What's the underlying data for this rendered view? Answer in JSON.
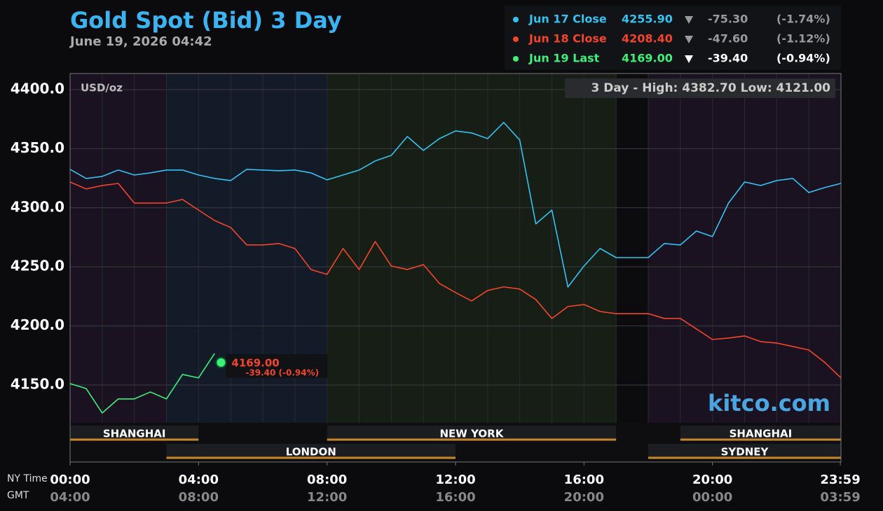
{
  "chart_data": {
    "type": "line",
    "title": "Gold Spot (Bid) 3 Day",
    "subtitle": "June 19, 2026 04:42",
    "ylabel": "USD/oz",
    "annotation": "3 Day - High: 4382.70  Low: 4121.00",
    "watermark": "kitco.com",
    "xlabel": "NY Time",
    "x2label": "GMT",
    "xlim": [
      0,
      24
    ],
    "xticks": [
      {
        "value": 0,
        "label": "00:00"
      },
      {
        "value": 4,
        "label": "04:00"
      },
      {
        "value": 8,
        "label": "08:00"
      },
      {
        "value": 12,
        "label": "12:00"
      },
      {
        "value": 16,
        "label": "16:00"
      },
      {
        "value": 20,
        "label": "20:00"
      },
      {
        "value": 23.98,
        "label": "23:59"
      }
    ],
    "x2ticks": [
      "04:00",
      "08:00",
      "12:00",
      "16:00",
      "20:00",
      "00:00",
      "03:59"
    ],
    "ylim": [
      4118,
      4413.6
    ],
    "yticks": [
      {
        "value": 4150,
        "label": "4150.0"
      },
      {
        "value": 4200,
        "label": "4200.0"
      },
      {
        "value": 4250,
        "label": "4250.0"
      },
      {
        "value": 4300,
        "label": "4300.0"
      },
      {
        "value": 4350,
        "label": "4350.0"
      },
      {
        "value": 4400,
        "label": "4400.0"
      }
    ],
    "grid": true,
    "x": [
      0,
      0.5,
      1,
      1.5,
      2,
      2.5,
      3,
      3.5,
      4,
      4.5,
      5,
      5.5,
      6,
      6.5,
      7,
      7.5,
      8,
      8.5,
      9,
      9.5,
      10,
      10.5,
      11,
      11.5,
      12,
      12.5,
      13,
      13.5,
      14,
      14.5,
      15,
      15.5,
      16,
      16.5,
      17,
      17.5,
      18,
      18.5,
      19,
      19.5,
      20,
      20.5,
      21,
      21.5,
      22,
      22.5,
      23,
      23.5,
      24
    ],
    "series": [
      {
        "name": "Jun 17 Close",
        "color": "#33c3f2",
        "values": [
          4332.5,
          4324.8,
          4326.5,
          4331.9,
          4327.7,
          4329.5,
          4331.9,
          4331.9,
          4327.7,
          4324.8,
          4323,
          4332.5,
          4331.9,
          4331.3,
          4331.9,
          4329.5,
          4323.6,
          4327.7,
          4331.9,
          4339.6,
          4344.3,
          4360.3,
          4348.5,
          4358.5,
          4365,
          4363.3,
          4358.5,
          4372.2,
          4357.3,
          4286.3,
          4298,
          4232.9,
          4250.7,
          4265.5,
          4257.8,
          4257.8,
          4257.8,
          4269.7,
          4268.5,
          4280.3,
          4275.6,
          4304,
          4321.8,
          4318.8,
          4323,
          4324.8,
          4312.9,
          4317.1,
          4320.6
        ]
      },
      {
        "name": "Jun 18 Close",
        "color": "#f2452c",
        "values": [
          4321.8,
          4315.9,
          4318.8,
          4320.6,
          4304,
          4304,
          4304,
          4307,
          4298,
          4289.2,
          4283.3,
          4268.5,
          4268.5,
          4269.7,
          4265.5,
          4247.7,
          4243.6,
          4265.5,
          4247.7,
          4271.4,
          4250.7,
          4247.7,
          4251.9,
          4235.9,
          4228.2,
          4221.1,
          4230,
          4233,
          4231.2,
          4222.3,
          4206.3,
          4216.4,
          4218.1,
          4212.2,
          4210.4,
          4210.4,
          4210.4,
          4206.3,
          4206.3,
          4197.4,
          4188.5,
          4189.7,
          4191.5,
          4186.7,
          4185.5,
          4182.6,
          4179.6,
          4169,
          4156
        ]
      },
      {
        "name": "Jun 19 Last",
        "color": "#3ef07a",
        "values": [
          4151.2,
          4147,
          4126.3,
          4138.2,
          4138.2,
          4144.1,
          4138.2,
          4158.9,
          4156,
          4176.7,
          null,
          null,
          null,
          null,
          null,
          null,
          null,
          null,
          null,
          null,
          null,
          null,
          null,
          null,
          null,
          null,
          null,
          null,
          null,
          null,
          null,
          null,
          null,
          null,
          null,
          null,
          null,
          null,
          null,
          null,
          null,
          null,
          null,
          null,
          null,
          null,
          null,
          null,
          null
        ]
      }
    ],
    "last_point": {
      "x": 4.7,
      "value": 4169.0,
      "label": "4169.00",
      "change_label": "-39.40 (-0.94%)"
    },
    "legend_rows": [
      {
        "label": "Jun 17 Close",
        "price": "4255.90",
        "change": "-75.30",
        "pct": "(-1.74%)"
      },
      {
        "label": "Jun 18 Close",
        "price": "4208.40",
        "change": "-47.60",
        "pct": "(-1.12%)"
      },
      {
        "label": "Jun 19 Last",
        "price": "4169.00",
        "change": "-39.40",
        "pct": "(-0.94%)"
      }
    ],
    "sessions": [
      {
        "name": "SHANGHAI",
        "start": 0,
        "end": 4
      },
      {
        "name": "LONDON",
        "start": 3,
        "end": 12
      },
      {
        "name": "NEW YORK",
        "start": 8,
        "end": 17
      },
      {
        "name": "SHANGHAI",
        "start": 19,
        "end": 24
      },
      {
        "name": "SYDNEY",
        "start": 18,
        "end": 24
      }
    ]
  }
}
